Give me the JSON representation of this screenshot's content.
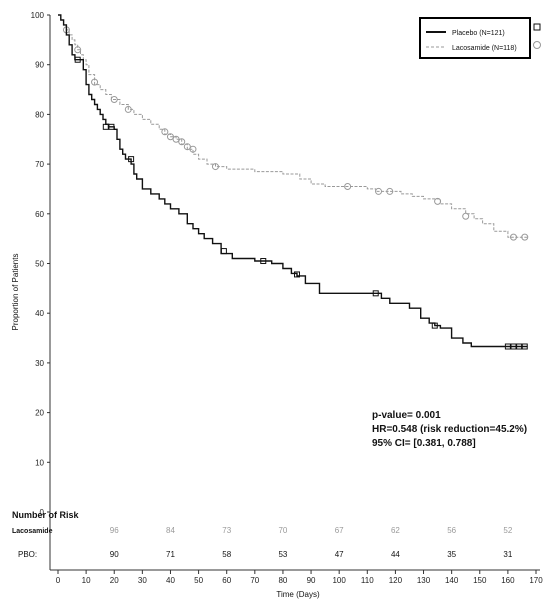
{
  "chart_data": {
    "type": "line",
    "title": "",
    "xlabel": "Time (Days)",
    "ylabel": "Proportion of Patients",
    "xlim": [
      0,
      170
    ],
    "ylim": [
      0,
      100
    ],
    "x_ticks": [
      0,
      10,
      20,
      30,
      40,
      50,
      60,
      70,
      80,
      90,
      100,
      110,
      120,
      130,
      140,
      150,
      160,
      170
    ],
    "y_ticks": [
      0,
      10,
      20,
      30,
      40,
      50,
      60,
      70,
      80,
      90,
      100
    ],
    "grid": false,
    "legend_position": "top-right",
    "series": [
      {
        "name": "Placebo (N=121)",
        "color": "#111111",
        "style": "solid",
        "marker": "square",
        "points": [
          [
            0,
            100
          ],
          [
            1,
            99
          ],
          [
            2,
            98
          ],
          [
            3,
            96
          ],
          [
            4,
            94
          ],
          [
            5,
            92
          ],
          [
            6,
            91
          ],
          [
            8,
            91
          ],
          [
            9,
            89
          ],
          [
            10,
            86
          ],
          [
            11,
            84
          ],
          [
            12,
            83
          ],
          [
            13,
            82
          ],
          [
            14,
            81
          ],
          [
            15,
            80
          ],
          [
            16,
            79
          ],
          [
            17,
            78
          ],
          [
            18,
            77.5
          ],
          [
            19,
            77.5
          ],
          [
            20,
            77
          ],
          [
            21,
            75
          ],
          [
            22,
            73
          ],
          [
            23,
            72
          ],
          [
            24,
            71
          ],
          [
            26,
            70
          ],
          [
            27,
            68
          ],
          [
            28,
            67
          ],
          [
            30,
            65
          ],
          [
            33,
            64
          ],
          [
            36,
            63
          ],
          [
            38,
            62
          ],
          [
            40,
            61
          ],
          [
            43,
            60
          ],
          [
            46,
            58
          ],
          [
            48,
            57
          ],
          [
            50,
            56
          ],
          [
            52,
            55
          ],
          [
            55,
            54
          ],
          [
            58,
            52
          ],
          [
            62,
            51
          ],
          [
            70,
            50.5
          ],
          [
            76,
            50
          ],
          [
            80,
            49
          ],
          [
            83,
            48
          ],
          [
            85,
            47.5
          ],
          [
            88,
            46
          ],
          [
            93,
            44
          ],
          [
            100,
            44
          ],
          [
            107,
            44
          ],
          [
            113,
            44
          ],
          [
            115,
            43
          ],
          [
            118,
            42
          ],
          [
            125,
            41
          ],
          [
            129,
            39
          ],
          [
            132,
            38
          ],
          [
            134,
            37.5
          ],
          [
            136,
            37
          ],
          [
            140,
            35
          ],
          [
            144,
            34
          ],
          [
            147,
            33.3
          ],
          [
            160,
            33.3
          ],
          [
            167,
            33.3
          ]
        ],
        "censor_markers": [
          [
            7,
            91
          ],
          [
            17,
            77.5
          ],
          [
            19,
            77.5
          ],
          [
            26,
            71
          ],
          [
            59,
            52.5
          ],
          [
            73,
            50.5
          ],
          [
            85,
            47.8
          ],
          [
            113,
            44
          ],
          [
            134,
            37.5
          ],
          [
            160,
            33.3
          ],
          [
            162,
            33.3
          ],
          [
            164,
            33.3
          ],
          [
            166,
            33.3
          ]
        ]
      },
      {
        "name": "Lacosamide (N=118)",
        "color": "#999999",
        "style": "dashed",
        "marker": "circle",
        "points": [
          [
            0,
            100
          ],
          [
            1,
            99
          ],
          [
            2,
            98
          ],
          [
            3,
            97
          ],
          [
            4,
            96
          ],
          [
            5,
            95
          ],
          [
            6,
            94
          ],
          [
            7,
            93
          ],
          [
            8,
            92
          ],
          [
            9,
            91
          ],
          [
            10,
            90
          ],
          [
            11,
            88
          ],
          [
            13,
            86
          ],
          [
            15,
            85
          ],
          [
            17,
            84
          ],
          [
            19,
            83
          ],
          [
            22,
            82
          ],
          [
            25,
            81
          ],
          [
            27,
            80
          ],
          [
            30,
            79
          ],
          [
            33,
            78
          ],
          [
            36,
            77
          ],
          [
            38,
            76
          ],
          [
            40,
            75.5
          ],
          [
            42,
            75
          ],
          [
            44,
            74
          ],
          [
            46,
            73
          ],
          [
            48,
            72
          ],
          [
            50,
            71
          ],
          [
            53,
            70
          ],
          [
            56,
            69.5
          ],
          [
            60,
            69
          ],
          [
            70,
            68.5
          ],
          [
            80,
            68
          ],
          [
            86,
            67
          ],
          [
            90,
            66
          ],
          [
            95,
            65.5
          ],
          [
            105,
            65.5
          ],
          [
            110,
            65
          ],
          [
            113,
            64.5
          ],
          [
            118,
            64.5
          ],
          [
            122,
            64
          ],
          [
            126,
            63.5
          ],
          [
            130,
            63
          ],
          [
            136,
            62
          ],
          [
            140,
            61
          ],
          [
            145,
            60
          ],
          [
            148,
            59
          ],
          [
            151,
            58
          ],
          [
            155,
            56.5
          ],
          [
            160,
            55.3
          ],
          [
            167,
            55.3
          ]
        ],
        "censor_markers": [
          [
            3,
            97
          ],
          [
            7,
            93
          ],
          [
            13,
            86.5
          ],
          [
            20,
            83
          ],
          [
            25,
            81
          ],
          [
            38,
            76.5
          ],
          [
            40,
            75.5
          ],
          [
            42,
            75
          ],
          [
            44,
            74.5
          ],
          [
            46,
            73.5
          ],
          [
            48,
            73
          ],
          [
            56,
            69.5
          ],
          [
            103,
            65.5
          ],
          [
            114,
            64.5
          ],
          [
            118,
            64.5
          ],
          [
            135,
            62.5
          ],
          [
            145,
            59.5
          ],
          [
            162,
            55.3
          ],
          [
            166,
            55.3
          ]
        ]
      }
    ],
    "annotations": {
      "p_value": "p-value= 0.001",
      "hr": "HR=0.548 (risk reduction=45.2%)",
      "ci": "95% CI= [0.381, 0.788]"
    },
    "risk_table": {
      "title": "Number of Risk",
      "rows": [
        {
          "label": "Lacosamide",
          "color": "#999999",
          "values": [
            "96",
            "84",
            "73",
            "70",
            "67",
            "62",
            "56",
            "52"
          ]
        },
        {
          "label": "PBO:",
          "color": "#111111",
          "values": [
            "90",
            "71",
            "58",
            "53",
            "47",
            "44",
            "35",
            "31"
          ]
        }
      ],
      "x_positions": [
        20,
        40,
        60,
        80,
        100,
        120,
        140,
        160
      ]
    }
  }
}
